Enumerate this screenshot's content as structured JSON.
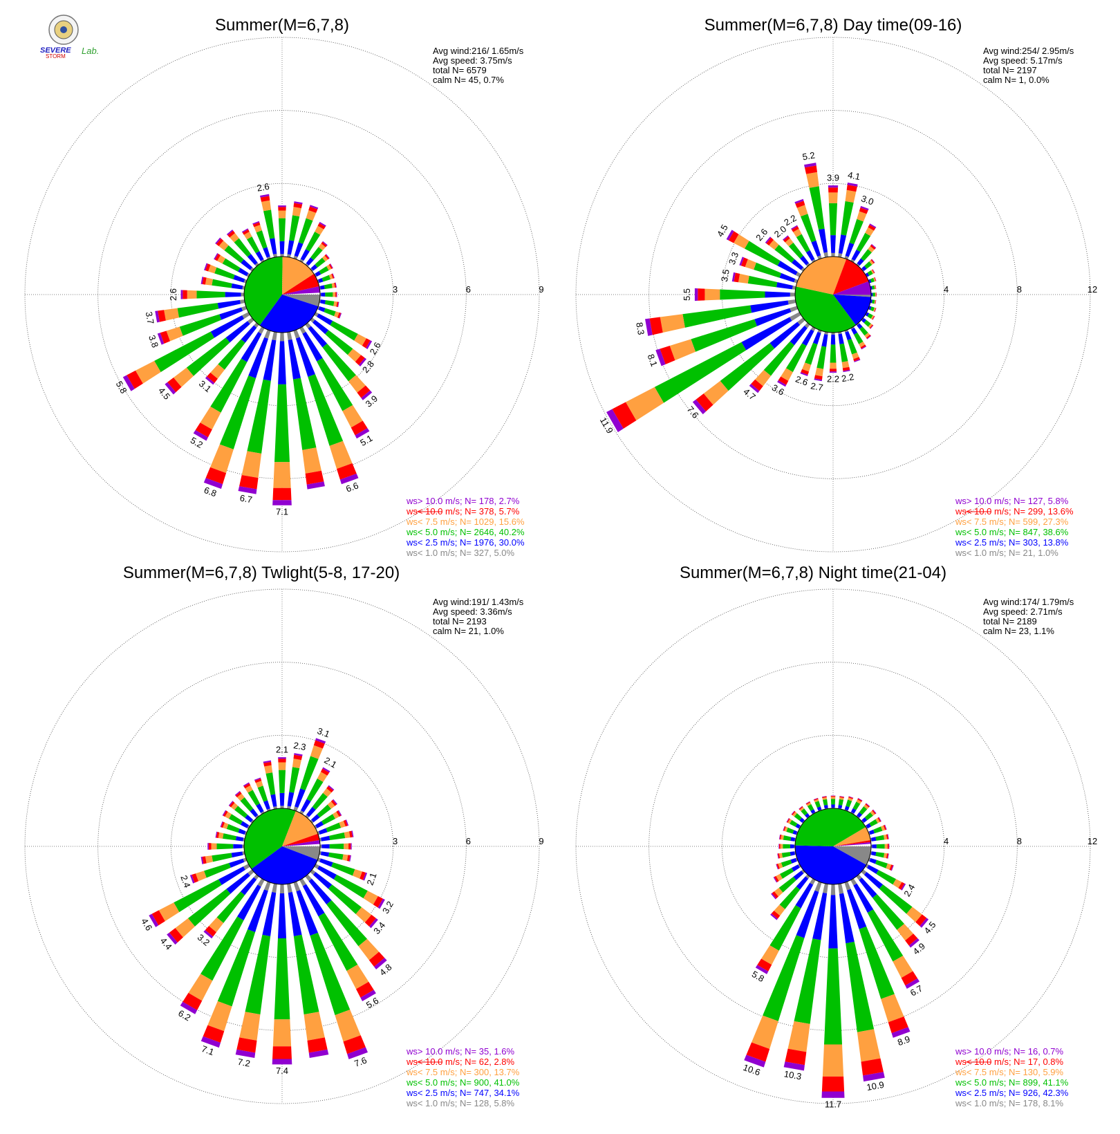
{
  "logo": {
    "name": "Severe Storm Lab.",
    "text_severe": "SEVERE",
    "text_storm": "STORM",
    "text_lab": "Lab."
  },
  "colors": {
    "calm_pie": "#888888",
    "lt1": "#888888",
    "lt2_5": "#0000ff",
    "lt5": "#00c000",
    "lt7_5": "#ffa040",
    "lt10": "#ff0000",
    "gt10": "#9000d0"
  },
  "legend_rows": [
    {
      "op": "ws>",
      "thr": "10.0 m/s;",
      "color": "#9000d0"
    },
    {
      "op": "ws<",
      "thr": "10.0 m/s;",
      "color": "#ff0000"
    },
    {
      "op": "ws<",
      "thr": "7.5 m/s;",
      "color": "#ffa040"
    },
    {
      "op": "ws<",
      "thr": "5.0 m/s;",
      "color": "#00c000"
    },
    {
      "op": "ws<",
      "thr": "2.5 m/s;",
      "color": "#0000ff"
    },
    {
      "op": "ws<",
      "thr": "1.0 m/s;",
      "color": "#888888"
    }
  ],
  "chart_data": [
    {
      "type": "wind-rose",
      "title": "Summer(M=6,7,8)",
      "rings": [
        3,
        6,
        9
      ],
      "ring_labels": [
        "3",
        "6",
        "9"
      ],
      "stats": [
        "Avg wind:216/ 1.65m/s",
        "Avg speed: 3.75m/s",
        "total N=       6579",
        "calm N=     45,   0.7%"
      ],
      "legend": [
        {
          "n": "178,",
          "pct": "2.7%"
        },
        {
          "n": "378,",
          "pct": "5.7%"
        },
        {
          "n": "1029,",
          "pct": "15.6%"
        },
        {
          "n": "2646,",
          "pct": "40.2%"
        },
        {
          "n": "1976,",
          "pct": "30.0%"
        },
        {
          "n": "327,",
          "pct": "5.0%"
        }
      ],
      "pie": [
        0.05,
        0.3,
        0.402,
        0.156,
        0.057,
        0.027
      ],
      "bars": [
        {
          "dir": 0,
          "total": 2.1
        },
        {
          "dir": 10,
          "total": 2.3
        },
        {
          "dir": 20,
          "total": 2.3
        },
        {
          "dir": 30,
          "total": 1.8
        },
        {
          "dir": 40,
          "total": 1.2
        },
        {
          "dir": 50,
          "total": 0.9
        },
        {
          "dir": 60,
          "total": 0.8
        },
        {
          "dir": 70,
          "total": 0.7
        },
        {
          "dir": 80,
          "total": 0.7
        },
        {
          "dir": 90,
          "total": 0.7
        },
        {
          "dir": 100,
          "total": 0.8
        },
        {
          "dir": 110,
          "total": 1.0
        },
        {
          "dir": 120,
          "total": 2.6,
          "label": "2.6"
        },
        {
          "dir": 130,
          "total": 2.8,
          "label": "2.8"
        },
        {
          "dir": 140,
          "total": 3.9,
          "label": "3.9"
        },
        {
          "dir": 150,
          "total": 5.1,
          "label": "5.1"
        },
        {
          "dir": 160,
          "total": 6.6,
          "label": "6.6"
        },
        {
          "dir": 170,
          "total": 6.5
        },
        {
          "dir": 180,
          "total": 7.1,
          "label": "7.1"
        },
        {
          "dir": 190,
          "total": 6.7,
          "label": "6.7"
        },
        {
          "dir": 200,
          "total": 6.8,
          "label": "6.8"
        },
        {
          "dir": 210,
          "total": 5.2,
          "label": "5.2"
        },
        {
          "dir": 220,
          "total": 3.1,
          "label": "3.1"
        },
        {
          "dir": 230,
          "total": 4.5,
          "label": "4.5"
        },
        {
          "dir": 240,
          "total": 5.8,
          "label": "5.8"
        },
        {
          "dir": 250,
          "total": 3.8,
          "label": "3.8"
        },
        {
          "dir": 260,
          "total": 3.7,
          "label": "3.7"
        },
        {
          "dir": 270,
          "total": 2.6,
          "label": "2.6"
        },
        {
          "dir": 280,
          "total": 1.8
        },
        {
          "dir": 290,
          "total": 1.8
        },
        {
          "dir": 300,
          "total": 1.6
        },
        {
          "dir": 310,
          "total": 1.9
        },
        {
          "dir": 320,
          "total": 1.8
        },
        {
          "dir": 330,
          "total": 1.5
        },
        {
          "dir": 340,
          "total": 1.6
        },
        {
          "dir": 350,
          "total": 2.6,
          "label": "2.6"
        }
      ]
    },
    {
      "type": "wind-rose",
      "title": "Summer(M=6,7,8) Day time(09-16)",
      "rings": [
        4,
        8,
        12
      ],
      "ring_labels": [
        "4",
        "8",
        "12"
      ],
      "stats": [
        "Avg wind:254/ 2.95m/s",
        "Avg speed: 5.17m/s",
        "total N=       2197",
        "calm N=       1,   0.0%"
      ],
      "legend": [
        {
          "n": "127,",
          "pct": "5.8%"
        },
        {
          "n": "299,",
          "pct": "13.6%"
        },
        {
          "n": "599,",
          "pct": "27.3%"
        },
        {
          "n": "847,",
          "pct": "38.6%"
        },
        {
          "n": "303,",
          "pct": "13.8%"
        },
        {
          "n": "21,",
          "pct": "1.0%"
        }
      ],
      "pie": [
        0.01,
        0.138,
        0.386,
        0.273,
        0.136,
        0.058
      ],
      "bars": [
        {
          "dir": 0,
          "total": 3.9,
          "label": "3.9"
        },
        {
          "dir": 10,
          "total": 4.1,
          "label": "4.1"
        },
        {
          "dir": 20,
          "total": 3.0,
          "label": "3.0"
        },
        {
          "dir": 30,
          "total": 2.3
        },
        {
          "dir": 40,
          "total": 1.4
        },
        {
          "dir": 50,
          "total": 0.8
        },
        {
          "dir": 60,
          "total": 0.5
        },
        {
          "dir": 70,
          "total": 0.4
        },
        {
          "dir": 80,
          "total": 0.3
        },
        {
          "dir": 90,
          "total": 0.3
        },
        {
          "dir": 100,
          "total": 0.3
        },
        {
          "dir": 110,
          "total": 0.4
        },
        {
          "dir": 120,
          "total": 0.5
        },
        {
          "dir": 130,
          "total": 0.7
        },
        {
          "dir": 140,
          "total": 1.0
        },
        {
          "dir": 150,
          "total": 1.3
        },
        {
          "dir": 160,
          "total": 1.8
        },
        {
          "dir": 170,
          "total": 2.2,
          "label": "2.2"
        },
        {
          "dir": 180,
          "total": 2.2,
          "label": "2.2"
        },
        {
          "dir": 190,
          "total": 2.7,
          "label": "2.7"
        },
        {
          "dir": 200,
          "total": 2.6,
          "label": "2.6"
        },
        {
          "dir": 210,
          "total": 3.6,
          "label": "3.6"
        },
        {
          "dir": 220,
          "total": 4.7,
          "label": "4.7"
        },
        {
          "dir": 230,
          "total": 7.6,
          "label": "7.6"
        },
        {
          "dir": 240,
          "total": 11.9,
          "label": "11.9"
        },
        {
          "dir": 250,
          "total": 8.1,
          "label": "8.1"
        },
        {
          "dir": 260,
          "total": 8.3,
          "label": "8.3"
        },
        {
          "dir": 270,
          "total": 5.5,
          "label": "5.5"
        },
        {
          "dir": 280,
          "total": 3.5,
          "label": "3.5"
        },
        {
          "dir": 290,
          "total": 3.3,
          "label": "3.3"
        },
        {
          "dir": 300,
          "total": 4.5,
          "label": "4.5"
        },
        {
          "dir": 310,
          "total": 2.6,
          "label": "2.6"
        },
        {
          "dir": 320,
          "total": 2.0,
          "label": "2.0"
        },
        {
          "dir": 330,
          "total": 2.2,
          "label": "2.2"
        },
        {
          "dir": 340,
          "total": 3.4
        },
        {
          "dir": 350,
          "total": 5.2,
          "label": "5.2"
        }
      ]
    },
    {
      "type": "wind-rose",
      "title": "Summer(M=6,7,8) Twlight(5-8, 17-20)",
      "rings": [
        3,
        6,
        9
      ],
      "ring_labels": [
        "3",
        "6",
        "9"
      ],
      "stats": [
        "Avg wind:191/ 1.43m/s",
        "Avg speed: 3.36m/s",
        "total N=       2193",
        "calm N=     21,   1.0%"
      ],
      "legend": [
        {
          "n": "35,",
          "pct": "1.6%"
        },
        {
          "n": "62,",
          "pct": "2.8%"
        },
        {
          "n": "300,",
          "pct": "13.7%"
        },
        {
          "n": "900,",
          "pct": "41.0%"
        },
        {
          "n": "747,",
          "pct": "34.1%"
        },
        {
          "n": "128,",
          "pct": "5.8%"
        }
      ],
      "pie": [
        0.058,
        0.341,
        0.41,
        0.137,
        0.028,
        0.016
      ],
      "bars": [
        {
          "dir": 0,
          "total": 2.1,
          "label": "2.1"
        },
        {
          "dir": 10,
          "total": 2.3,
          "label": "2.3"
        },
        {
          "dir": 20,
          "total": 3.1,
          "label": "3.1"
        },
        {
          "dir": 30,
          "total": 2.1,
          "label": "2.1"
        },
        {
          "dir": 40,
          "total": 1.6
        },
        {
          "dir": 50,
          "total": 1.3
        },
        {
          "dir": 60,
          "total": 1.2
        },
        {
          "dir": 70,
          "total": 1.3
        },
        {
          "dir": 80,
          "total": 1.4
        },
        {
          "dir": 90,
          "total": 1.3
        },
        {
          "dir": 100,
          "total": 1.3
        },
        {
          "dir": 110,
          "total": 2.1,
          "label": "2.1"
        },
        {
          "dir": 120,
          "total": 3.2,
          "label": "3.2"
        },
        {
          "dir": 130,
          "total": 3.4,
          "label": "3.4"
        },
        {
          "dir": 140,
          "total": 4.8,
          "label": "4.8"
        },
        {
          "dir": 150,
          "total": 5.6,
          "label": "5.6"
        },
        {
          "dir": 160,
          "total": 7.6,
          "label": "7.6"
        },
        {
          "dir": 170,
          "total": 7.2
        },
        {
          "dir": 180,
          "total": 7.4,
          "label": "7.4"
        },
        {
          "dir": 190,
          "total": 7.2,
          "label": "7.2"
        },
        {
          "dir": 200,
          "total": 7.1,
          "label": "7.1"
        },
        {
          "dir": 210,
          "total": 6.2,
          "label": "6.2"
        },
        {
          "dir": 220,
          "total": 3.2,
          "label": "3.2"
        },
        {
          "dir": 230,
          "total": 4.4,
          "label": "4.4"
        },
        {
          "dir": 240,
          "total": 4.6,
          "label": "4.6"
        },
        {
          "dir": 250,
          "total": 2.4,
          "label": "2.4"
        },
        {
          "dir": 260,
          "total": 1.8
        },
        {
          "dir": 270,
          "total": 1.5
        },
        {
          "dir": 280,
          "total": 1.2
        },
        {
          "dir": 290,
          "total": 1.1
        },
        {
          "dir": 300,
          "total": 1.2
        },
        {
          "dir": 310,
          "total": 1.2
        },
        {
          "dir": 320,
          "total": 1.3
        },
        {
          "dir": 330,
          "total": 1.4
        },
        {
          "dir": 340,
          "total": 1.4
        },
        {
          "dir": 350,
          "total": 2.0
        }
      ]
    },
    {
      "type": "wind-rose",
      "title": "Summer(M=6,7,8) Night time(21-04)",
      "rings": [
        4,
        8,
        12
      ],
      "ring_labels": [
        "4",
        "8",
        "12"
      ],
      "stats": [
        "Avg wind:174/ 1.79m/s",
        "Avg speed: 2.71m/s",
        "total N=       2189",
        "calm N=     23,   1.1%"
      ],
      "legend": [
        {
          "n": "16,",
          "pct": "0.7%"
        },
        {
          "n": "17,",
          "pct": "0.8%"
        },
        {
          "n": "130,",
          "pct": "5.9%"
        },
        {
          "n": "899,",
          "pct": "41.1%"
        },
        {
          "n": "926,",
          "pct": "42.3%"
        },
        {
          "n": "178,",
          "pct": "8.1%"
        }
      ],
      "pie": [
        0.081,
        0.423,
        0.411,
        0.059,
        0.008,
        0.007
      ],
      "bars": [
        {
          "dir": 0,
          "total": 0.7
        },
        {
          "dir": 10,
          "total": 0.7
        },
        {
          "dir": 20,
          "total": 0.8
        },
        {
          "dir": 30,
          "total": 0.9
        },
        {
          "dir": 40,
          "total": 0.9
        },
        {
          "dir": 50,
          "total": 0.9
        },
        {
          "dir": 60,
          "total": 0.9
        },
        {
          "dir": 70,
          "total": 1.0
        },
        {
          "dir": 80,
          "total": 1.0
        },
        {
          "dir": 90,
          "total": 1.0
        },
        {
          "dir": 100,
          "total": 1.0
        },
        {
          "dir": 110,
          "total": 1.4
        },
        {
          "dir": 120,
          "total": 2.4,
          "label": "2.4"
        },
        {
          "dir": 130,
          "total": 4.5,
          "label": "4.5"
        },
        {
          "dir": 140,
          "total": 4.9,
          "label": "4.9"
        },
        {
          "dir": 150,
          "total": 6.7,
          "label": "6.7"
        },
        {
          "dir": 160,
          "total": 8.9,
          "label": "8.9"
        },
        {
          "dir": 170,
          "total": 10.9,
          "label": "10.9"
        },
        {
          "dir": 180,
          "total": 11.7,
          "label": "11.7"
        },
        {
          "dir": 190,
          "total": 10.3,
          "label": "10.3"
        },
        {
          "dir": 200,
          "total": 10.6,
          "label": "10.6"
        },
        {
          "dir": 210,
          "total": 5.8,
          "label": "5.8"
        },
        {
          "dir": 220,
          "total": 3.0
        },
        {
          "dir": 230,
          "total": 2.2
        },
        {
          "dir": 240,
          "total": 1.6
        },
        {
          "dir": 250,
          "total": 1.2
        },
        {
          "dir": 260,
          "total": 1.0
        },
        {
          "dir": 270,
          "total": 0.9
        },
        {
          "dir": 280,
          "total": 0.9
        },
        {
          "dir": 290,
          "total": 0.8
        },
        {
          "dir": 300,
          "total": 0.8
        },
        {
          "dir": 310,
          "total": 0.8
        },
        {
          "dir": 320,
          "total": 0.7
        },
        {
          "dir": 330,
          "total": 0.7
        },
        {
          "dir": 340,
          "total": 0.7
        },
        {
          "dir": 350,
          "total": 0.7
        }
      ]
    }
  ]
}
